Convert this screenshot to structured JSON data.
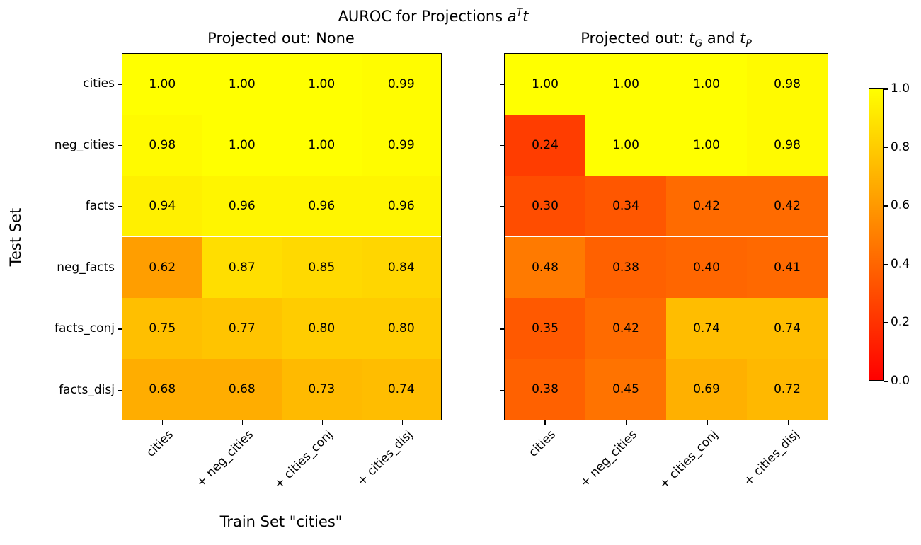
{
  "figure": {
    "suptitle": {
      "prefix": "AUROC for Projections ",
      "var_a": "a",
      "sup_T": "T",
      "var_t": "t"
    },
    "xlabel": "Train Set \"cities\"",
    "ylabel": "Test Set",
    "subtitle_left": "Projected out: None",
    "subtitle_right": {
      "prefix": "Projected out: ",
      "var_t1": "t",
      "sub_G": "G",
      "mid": " and ",
      "var_t2": "t",
      "sub_P": "P"
    }
  },
  "chart_data": {
    "type": "heatmap",
    "title": "AUROC for Projections a^T t",
    "colormap": "autumn",
    "vmin": 0.0,
    "vmax": 1.0,
    "grid": false,
    "legend_position": "right-colorbar",
    "xlabel": "Train Set \"cities\"",
    "ylabel": "Test Set",
    "x_categories": [
      "cities",
      "+ neg_cities",
      "+ cities_conj",
      "+ cities_disj"
    ],
    "y_categories": [
      "cities",
      "neg_cities",
      "facts",
      "neg_facts",
      "facts_conj",
      "facts_disj"
    ],
    "subplots": [
      {
        "title": "Projected out: None",
        "values": [
          [
            1.0,
            1.0,
            1.0,
            0.99
          ],
          [
            0.98,
            1.0,
            1.0,
            0.99
          ],
          [
            0.94,
            0.96,
            0.96,
            0.96
          ],
          [
            0.62,
            0.87,
            0.85,
            0.84
          ],
          [
            0.75,
            0.77,
            0.8,
            0.8
          ],
          [
            0.68,
            0.68,
            0.73,
            0.74
          ]
        ]
      },
      {
        "title": "Projected out: t_G and t_P",
        "values": [
          [
            1.0,
            1.0,
            1.0,
            0.98
          ],
          [
            0.24,
            1.0,
            1.0,
            0.98
          ],
          [
            0.3,
            0.34,
            0.42,
            0.42
          ],
          [
            0.48,
            0.38,
            0.4,
            0.41
          ],
          [
            0.35,
            0.42,
            0.74,
            0.74
          ],
          [
            0.38,
            0.45,
            0.69,
            0.72
          ]
        ]
      }
    ],
    "colorbar": {
      "tick_labels": [
        "1.0",
        "0.8",
        "0.6",
        "0.4",
        "0.2",
        "0.0"
      ],
      "top_color": "#ffff00",
      "bottom_color": "#ff0000"
    }
  }
}
